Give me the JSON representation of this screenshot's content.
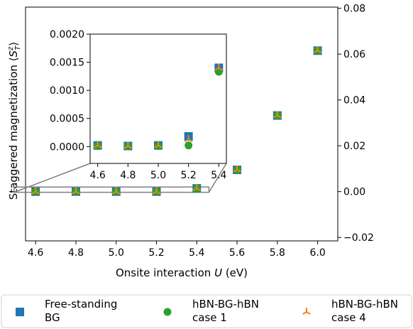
{
  "chart_data": {
    "type": "scatter",
    "xlabel": "Onsite interaction U (eV)",
    "ylabel": "Staggered magnetization ⟨S_T^z⟩",
    "xlim": [
      4.55,
      6.1
    ],
    "ylim": [
      -0.0215,
      0.0805
    ],
    "y_axis_position": "right",
    "grid": false,
    "legend_placement": "bottom, outside",
    "x_ticks": [
      "4.6",
      "4.8",
      "5.0",
      "5.2",
      "5.4",
      "5.6",
      "5.8",
      "6.0"
    ],
    "y_ticks": [
      "−0.02",
      "0.00",
      "0.02",
      "0.04",
      "0.06",
      "0.08"
    ],
    "x": [
      4.6,
      4.8,
      5.0,
      5.2,
      5.4,
      5.6,
      5.8,
      6.0
    ],
    "series": [
      {
        "name": "Free-standing BG",
        "marker": "square",
        "color": "#1f77b4",
        "values": [
          0.0,
          0.0,
          0.0,
          0.0,
          0.0014,
          0.0095,
          0.0332,
          0.0615
        ]
      },
      {
        "name": "hBN-BG-hBN case 1",
        "marker": "circle",
        "color": "#2ca02c",
        "values": [
          0.0,
          0.0,
          0.0,
          0.0,
          0.0013,
          0.0095,
          0.0332,
          0.0615
        ]
      },
      {
        "name": "hBN-BG-hBN case 4",
        "marker": "tri",
        "color": "#ff7f0e",
        "values": [
          0.0,
          0.0,
          0.0,
          0.0,
          0.0014,
          0.0095,
          0.0332,
          0.0615
        ]
      }
    ],
    "inset": {
      "xlim": [
        4.55,
        5.45
      ],
      "ylim": [
        -0.0003,
        0.002
      ],
      "x_ticks": [
        "4.6",
        "4.8",
        "5.0",
        "5.2",
        "5.4"
      ],
      "y_ticks": [
        "0.0000",
        "0.0005",
        "0.0010",
        "0.0015",
        "0.0020"
      ],
      "x": [
        4.6,
        4.8,
        5.0,
        5.2,
        5.4
      ],
      "series": [
        {
          "name": "Free-standing BG",
          "values": [
            2e-05,
            1e-05,
            2e-05,
            0.00018,
            0.0014
          ]
        },
        {
          "name": "hBN-BG-hBN case 1",
          "values": [
            1e-05,
            1e-05,
            1e-05,
            2e-05,
            0.00133
          ]
        },
        {
          "name": "hBN-BG-hBN case 4",
          "values": [
            2e-05,
            1e-05,
            2e-05,
            0.00013,
            0.0014
          ]
        }
      ]
    },
    "legend": [
      {
        "line1": "Free-standing",
        "line2": "BG"
      },
      {
        "line1": "hBN-BG-hBN",
        "line2": "case 1"
      },
      {
        "line1": "hBN-BG-hBN",
        "line2": "case 4"
      }
    ]
  }
}
